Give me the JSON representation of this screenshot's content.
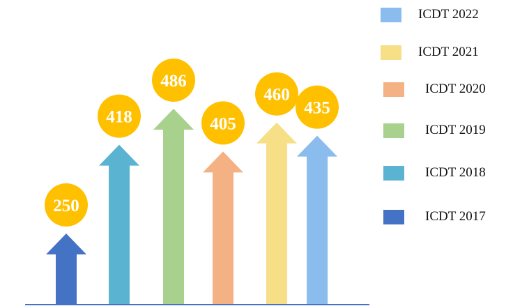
{
  "chart_data": {
    "type": "bar",
    "categories": [
      "ICDT 2017",
      "ICDT 2018",
      "ICDT 2019",
      "ICDT 2020",
      "ICDT 2021",
      "ICDT 2022"
    ],
    "values": [
      250,
      418,
      486,
      405,
      460,
      435
    ],
    "title": "",
    "xlabel": "",
    "ylabel": "",
    "ylim": [
      0,
      520
    ],
    "grid": false,
    "legend": "right",
    "colors": [
      "#4472c4",
      "#5ab4d1",
      "#a9d18e",
      "#f4b183",
      "#f6df86",
      "#8bbcee"
    ],
    "badge_color": "#ffc000",
    "axis_color": "#4472c4",
    "legend_order": [
      5,
      4,
      3,
      2,
      1,
      0
    ]
  }
}
